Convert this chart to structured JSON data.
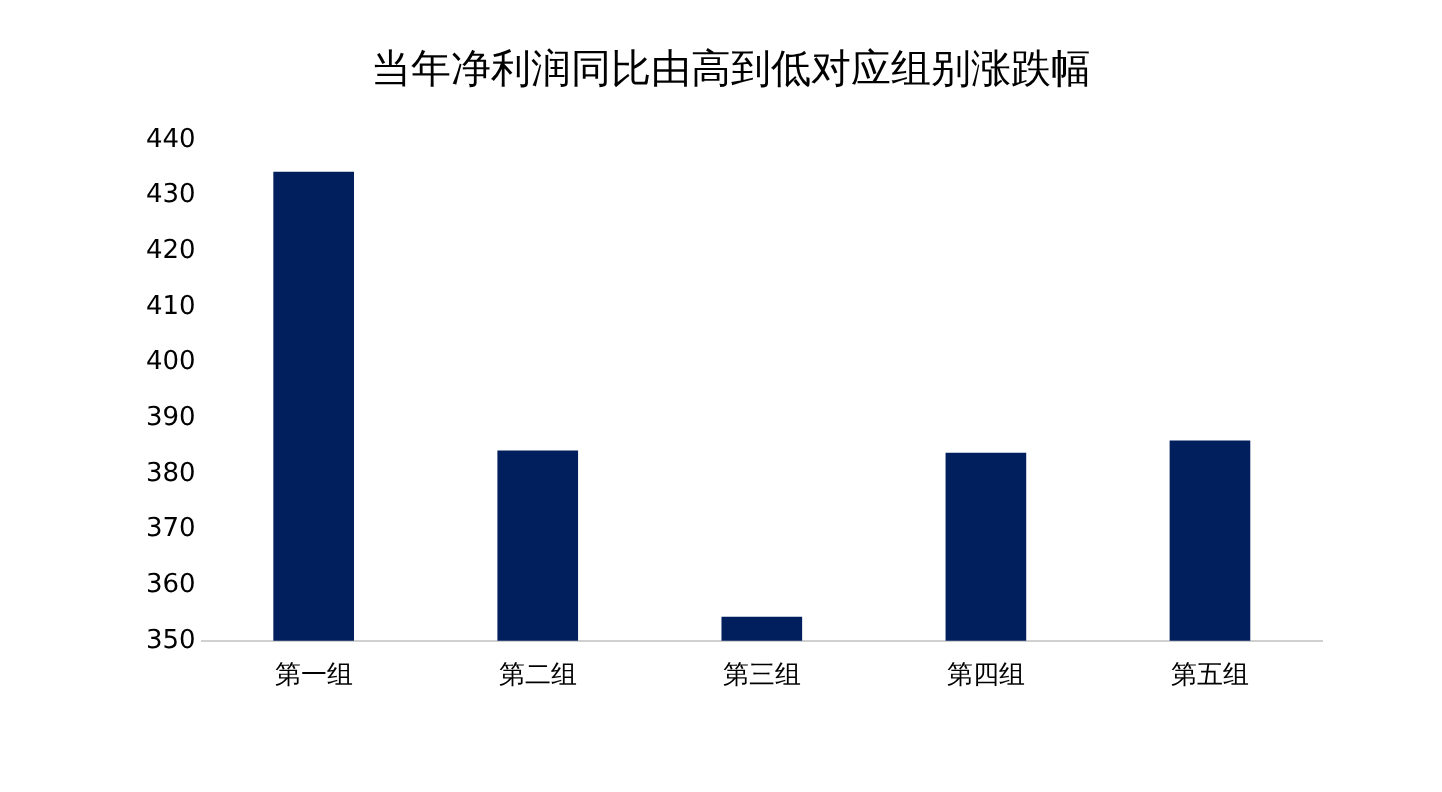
{
  "chart_data": {
    "type": "bar",
    "title": "当年净利润同比由高到低对应组别涨跌幅",
    "categories": [
      "第一组",
      "第二组",
      "第三组",
      "第四组",
      "第五组"
    ],
    "values": [
      434.3,
      384.2,
      354.3,
      383.8,
      386.0
    ],
    "color": "#001f5c",
    "ylim": [
      350,
      440
    ],
    "yticks": [
      350,
      360,
      370,
      380,
      390,
      400,
      410,
      420,
      430,
      440
    ],
    "grid": false,
    "legend": false
  }
}
